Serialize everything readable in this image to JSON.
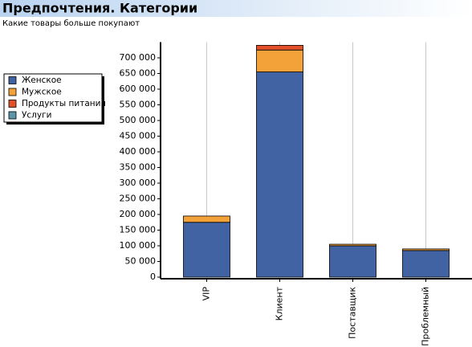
{
  "chart_data": {
    "type": "stacked-bar",
    "title": "Предпочтения. Категории",
    "subtitle": "Какие товары больше покупают",
    "categories": [
      "VIP",
      "Клиент",
      "Поставщик",
      "Проблемный"
    ],
    "series": [
      {
        "name": "Женское",
        "color": "#4263a3",
        "values": [
          175000,
          655000,
          100000,
          85000
        ]
      },
      {
        "name": "Мужское",
        "color": "#f3a23a",
        "values": [
          20000,
          70000,
          5000,
          5000
        ]
      },
      {
        "name": "Продукты питания",
        "color": "#e2502a",
        "values": [
          0,
          15000,
          0,
          0
        ]
      },
      {
        "name": "Услуги",
        "color": "#5b97a8",
        "values": [
          0,
          0,
          0,
          0
        ]
      }
    ],
    "ylim": [
      0,
      750000
    ],
    "yticks": [
      0,
      {
        "value": 50000,
        "label": "50 000"
      },
      {
        "value": 100000,
        "label": "100 000"
      },
      {
        "value": 150000,
        "label": "150 000"
      },
      {
        "value": 200000,
        "label": "200 000"
      },
      {
        "value": 250000,
        "label": "250 000"
      },
      {
        "value": 300000,
        "label": "300 000"
      },
      {
        "value": 350000,
        "label": "350 000"
      },
      {
        "value": 400000,
        "label": "400 000"
      },
      {
        "value": 450000,
        "label": "450 000"
      },
      {
        "value": 500000,
        "label": "500 000"
      },
      {
        "value": 550000,
        "label": "550 000"
      },
      {
        "value": 600000,
        "label": "600 000"
      },
      {
        "value": 650000,
        "label": "650 000"
      },
      {
        "value": 700000,
        "label": "700 000"
      }
    ],
    "grid": "x",
    "legend": "left"
  }
}
